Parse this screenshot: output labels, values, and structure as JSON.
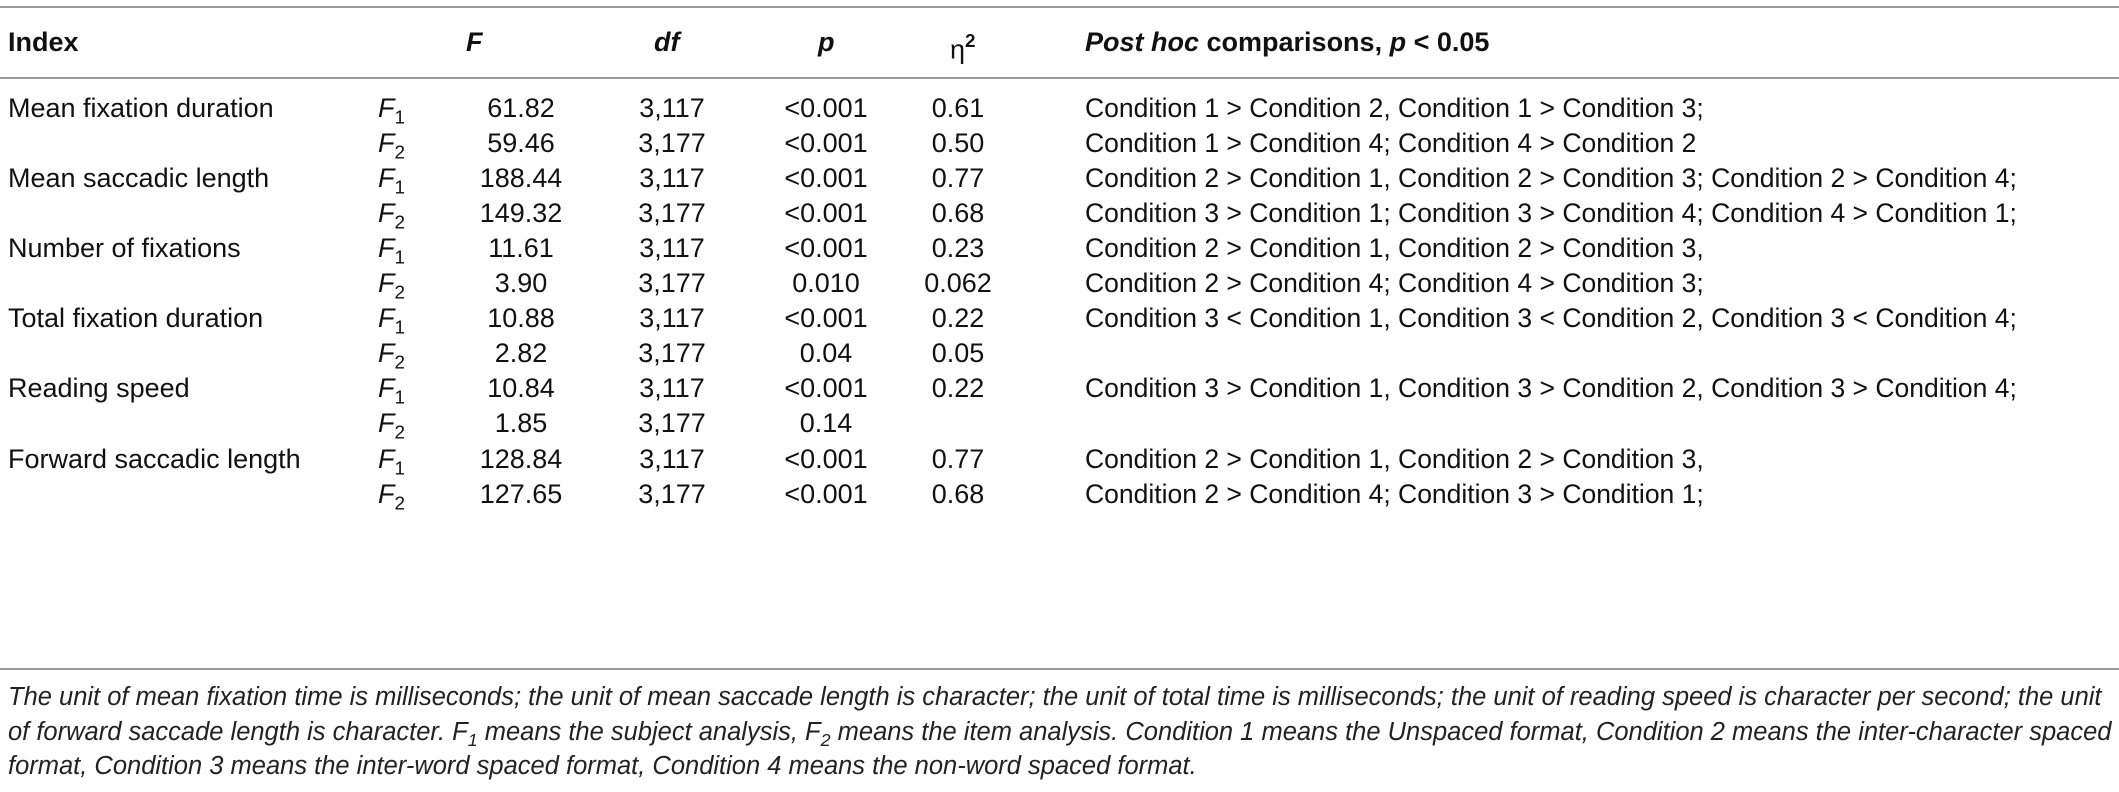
{
  "table": {
    "headers": {
      "index": "Index",
      "f": "F",
      "df": "df",
      "p": "p",
      "eta": "η",
      "eta_sup": "2",
      "posthoc_italic": "Post hoc",
      "posthoc_rest": " comparisons, ",
      "posthoc_p": "p",
      "posthoc_tail": " < 0.05"
    },
    "rows": [
      {
        "index": "Mean fixation duration",
        "f_label": "F",
        "f_sub": "1",
        "F": "61.82",
        "df": "3,117",
        "p": "<0.001",
        "eta": "0.61",
        "posthoc": "Condition 1 > Condition 2, Condition 1 > Condition 3;"
      },
      {
        "index": "",
        "f_label": "F",
        "f_sub": "2",
        "F": "59.46",
        "df": "3,177",
        "p": "<0.001",
        "eta": "0.50",
        "posthoc": "Condition 1 > Condition 4; Condition 4 > Condition 2"
      },
      {
        "index": "Mean saccadic length",
        "f_label": "F",
        "f_sub": "1",
        "F": "188.44",
        "df": "3,117",
        "p": "<0.001",
        "eta": "0.77",
        "posthoc": "Condition 2 > Condition 1, Condition 2 > Condition 3; Condition 2 > Condition 4;"
      },
      {
        "index": "",
        "f_label": "F",
        "f_sub": "2",
        "F": "149.32",
        "df": "3,177",
        "p": "<0.001",
        "eta": "0.68",
        "posthoc": "Condition 3 > Condition 1; Condition 3 > Condition 4; Condition 4 > Condition 1;"
      },
      {
        "index": "Number of fixations",
        "f_label": "F",
        "f_sub": "1",
        "F": "11.61",
        "df": "3,117",
        "p": "<0.001",
        "eta": "0.23",
        "posthoc": "Condition 2 > Condition 1, Condition 2 > Condition 3,"
      },
      {
        "index": "",
        "f_label": "F",
        "f_sub": "2",
        "F": "3.90",
        "df": "3,177",
        "p": "0.010",
        "eta": "0.062",
        "posthoc": "Condition 2 > Condition 4; Condition 4 > Condition 3;"
      },
      {
        "index": "Total fixation duration",
        "f_label": "F",
        "f_sub": "1",
        "F": "10.88",
        "df": "3,117",
        "p": "<0.001",
        "eta": "0.22",
        "posthoc": "Condition 3 < Condition 1, Condition 3 < Condition 2, Condition 3 < Condition 4;"
      },
      {
        "index": "",
        "f_label": "F",
        "f_sub": "2",
        "F": "2.82",
        "df": "3,177",
        "p": "0.04",
        "eta": "0.05",
        "posthoc": ""
      },
      {
        "index": "Reading speed",
        "f_label": "F",
        "f_sub": "1",
        "F": "10.84",
        "df": "3,117",
        "p": "<0.001",
        "eta": "0.22",
        "posthoc": "Condition 3 > Condition 1, Condition 3 > Condition 2, Condition 3 > Condition 4;"
      },
      {
        "index": "",
        "f_label": "F",
        "f_sub": "2",
        "F": "1.85",
        "df": "3,177",
        "p": "0.14",
        "eta": "",
        "posthoc": ""
      },
      {
        "index": "Forward saccadic length",
        "f_label": "F",
        "f_sub": "1",
        "F": "128.84",
        "df": "3,117",
        "p": "<0.001",
        "eta": "0.77",
        "posthoc": "Condition 2 > Condition 1, Condition 2 > Condition 3,"
      },
      {
        "index": "",
        "f_label": "F",
        "f_sub": "2",
        "F": "127.65",
        "df": "3,177",
        "p": "<0.001",
        "eta": "0.68",
        "posthoc": "Condition 2 > Condition 4; Condition 3 > Condition 1;"
      }
    ]
  },
  "note": {
    "part1": "The unit of mean fixation time is milliseconds; the unit of mean saccade length is character; the unit of total time is milliseconds; the unit of reading speed is character per second; the unit of forward saccade length is character. F",
    "sub1": "1",
    "part2": " means the subject analysis, F",
    "sub2": "2",
    "part3": " means the item analysis. Condition 1 means the Unspaced format, Condition 2 means the inter-character spaced format, Condition 3 means the inter-word spaced format, Condition 4 means the non-word spaced format."
  }
}
